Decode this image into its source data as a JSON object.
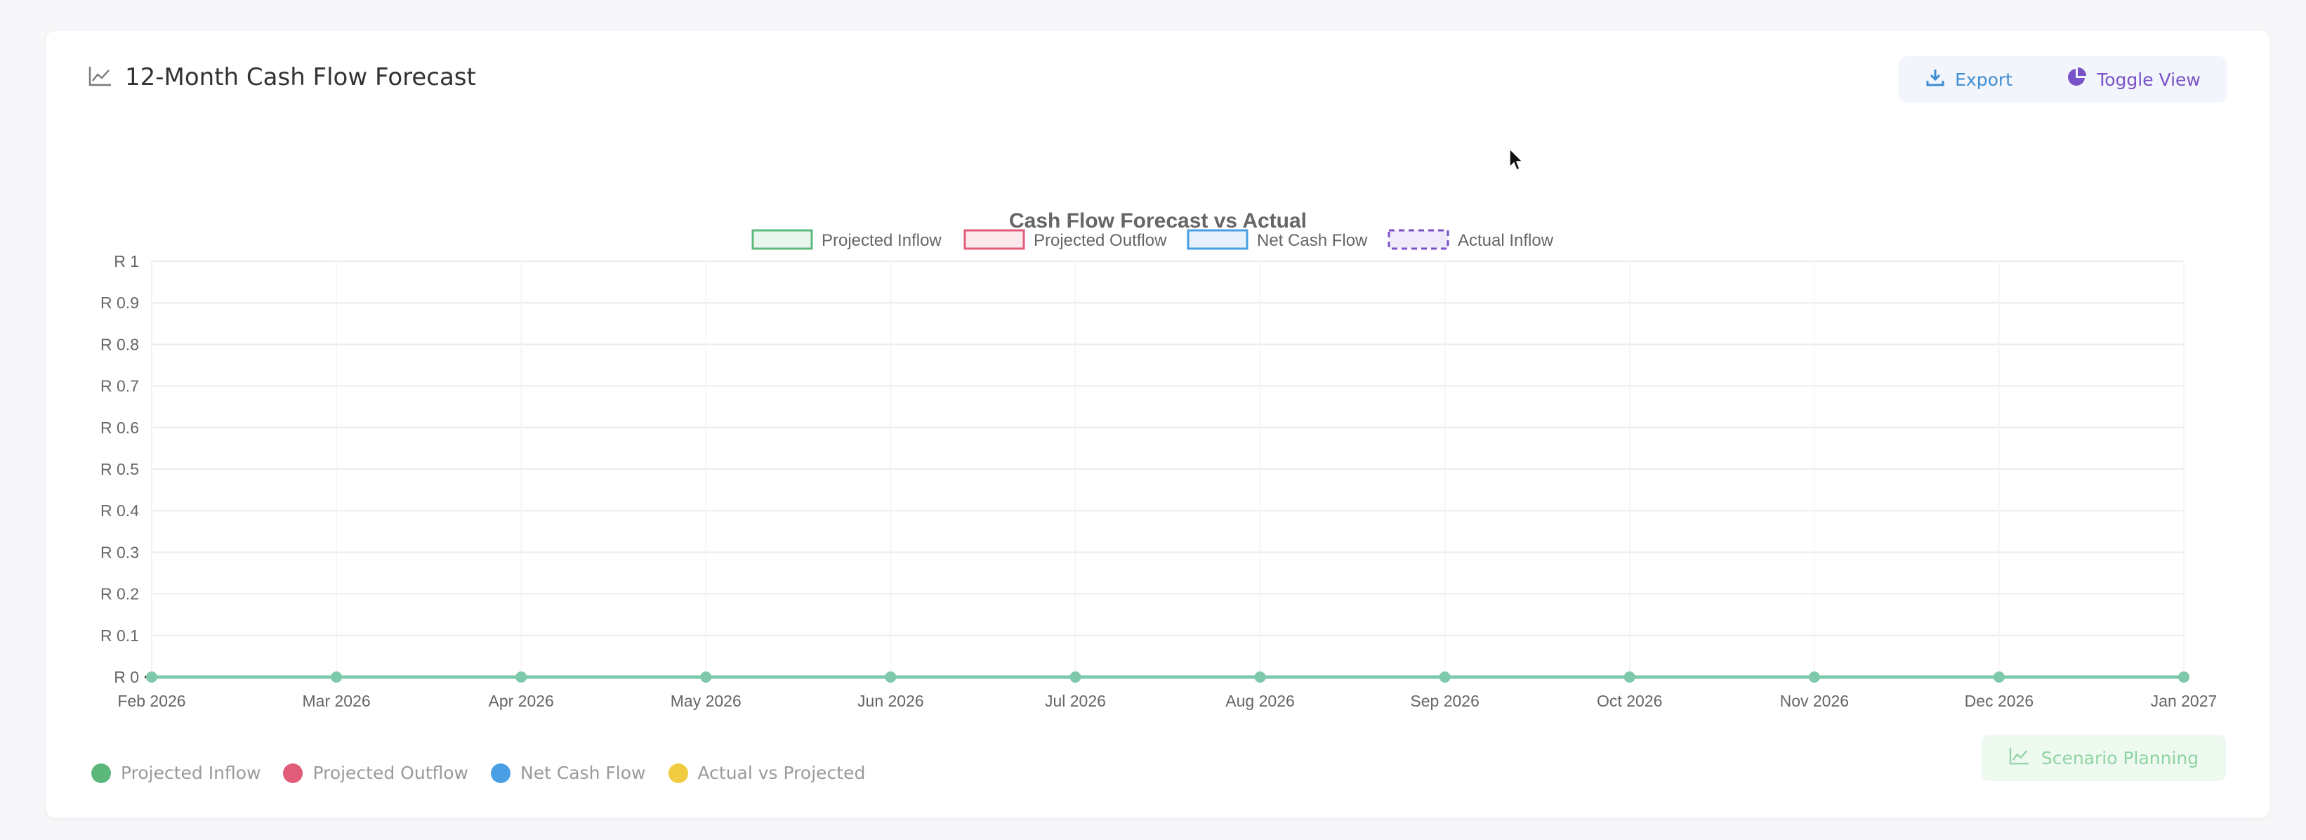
{
  "card": {
    "title": "12-Month Cash Flow Forecast",
    "title_icon": "line-chart-icon"
  },
  "toolbar": {
    "export_label": "Export",
    "export_icon": "download-icon",
    "toggle_label": "Toggle View",
    "toggle_icon": "pie-chart-icon"
  },
  "bottom_legend": [
    {
      "label": "Projected Inflow",
      "color": "#5cb87a"
    },
    {
      "label": "Projected Outflow",
      "color": "#e05c78"
    },
    {
      "label": "Net Cash Flow",
      "color": "#4a9ee3"
    },
    {
      "label": "Actual vs Projected",
      "color": "#f2cc40"
    }
  ],
  "scenario_label": "Scenario Planning",
  "scenario_icon": "line-chart-icon",
  "colors": {
    "inflow": "#5cb87a",
    "outflow": "#e05c78",
    "net": "#4a9ee3",
    "actual": "#7a52c7",
    "series_line": "#7ec8ac"
  },
  "chart_data": {
    "type": "line",
    "title": "Cash Flow Forecast vs Actual",
    "legend_position": "top-center",
    "grid": true,
    "categories": [
      "Feb 2026",
      "Mar 2026",
      "Apr 2026",
      "May 2026",
      "Jun 2026",
      "Jul 2026",
      "Aug 2026",
      "Sep 2026",
      "Oct 2026",
      "Nov 2026",
      "Dec 2026",
      "Jan 2027"
    ],
    "ylim": [
      0,
      1
    ],
    "yticks": [
      "R 0",
      "R 0.1",
      "R 0.2",
      "R 0.3",
      "R 0.4",
      "R 0.5",
      "R 0.6",
      "R 0.7",
      "R 0.8",
      "R 0.9",
      "R 1"
    ],
    "series": [
      {
        "name": "Projected Inflow",
        "style": "filled",
        "values": [
          0,
          0,
          0,
          0,
          0,
          0,
          0,
          0,
          0,
          0,
          0,
          0
        ]
      },
      {
        "name": "Projected Outflow",
        "style": "filled",
        "values": [
          0,
          0,
          0,
          0,
          0,
          0,
          0,
          0,
          0,
          0,
          0,
          0
        ]
      },
      {
        "name": "Net Cash Flow",
        "style": "solid",
        "values": [
          0,
          0,
          0,
          0,
          0,
          0,
          0,
          0,
          0,
          0,
          0,
          0
        ]
      },
      {
        "name": "Actual Inflow",
        "style": "dashed",
        "values": [
          0,
          0,
          0,
          0,
          0,
          0,
          0,
          0,
          0,
          0,
          0,
          0
        ]
      }
    ]
  }
}
